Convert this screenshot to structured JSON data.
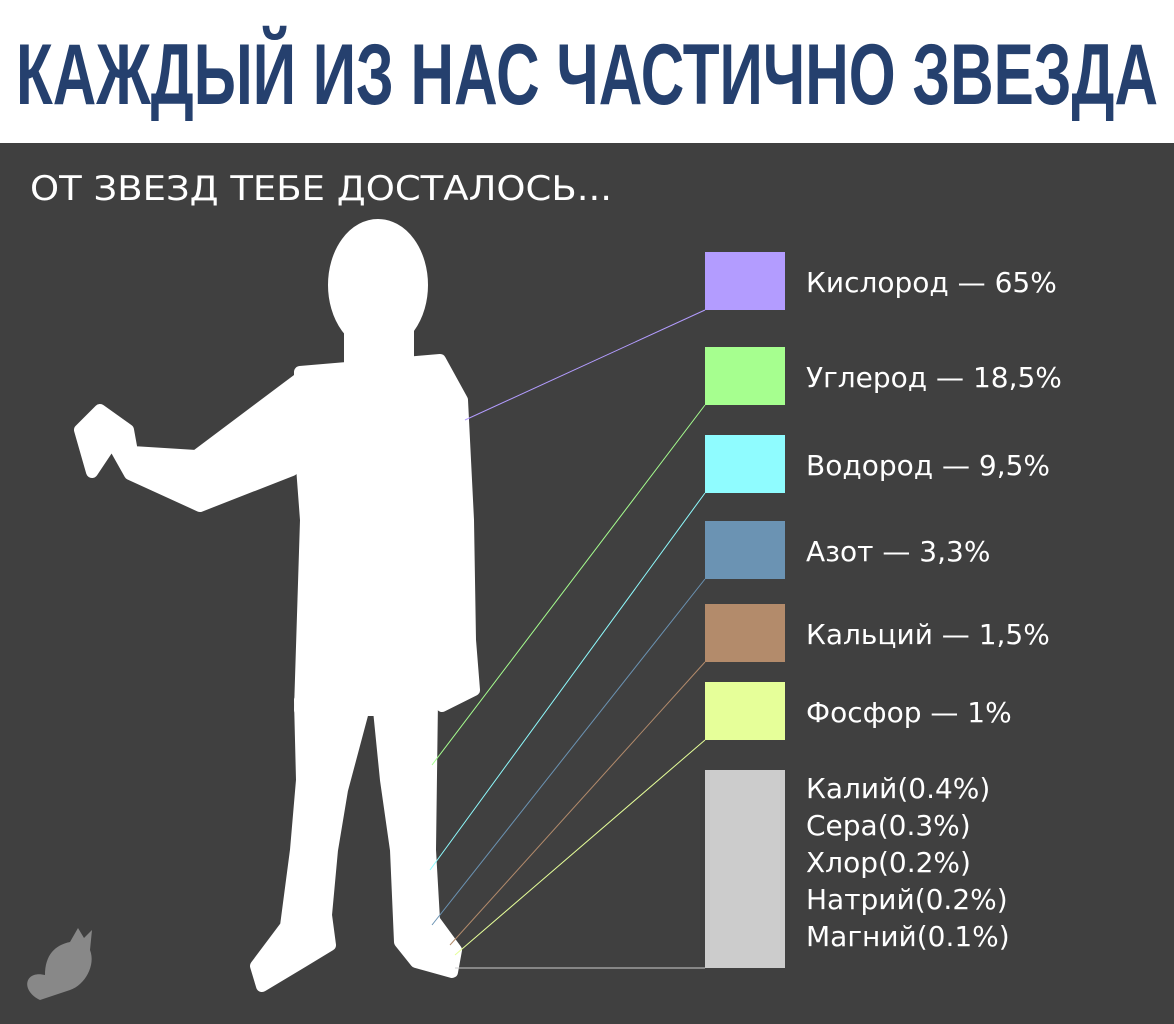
{
  "header": {
    "title": "КАЖДЫЙ ИЗ НАС ЧАСТИЧНО ЗВЕЗДА"
  },
  "subtitle": "ОТ ЗВЕЗД ТЕБЕ ДОСТАЛОСЬ...",
  "legend": {
    "items": [
      {
        "label": "Кислород — 65%",
        "color": "#b39cff"
      },
      {
        "label": "Углерод — 18,5%",
        "color": "#a6ff8f"
      },
      {
        "label": "Водород — 9,5%",
        "color": "#8ffcff"
      },
      {
        "label": "Азот — 3,3%",
        "color": "#6b93b3"
      },
      {
        "label": "Кальций — 1,5%",
        "color": "#b38b6b"
      },
      {
        "label": "Фосфор — 1%",
        "color": "#e6ff99"
      }
    ],
    "other": {
      "color": "#cccccc",
      "items": [
        "Калий(0.4%)",
        "Сера(0.3%)",
        "Хлор(0.2%)",
        "Натрий(0.2%)",
        "Магний(0.1%)"
      ]
    }
  }
}
